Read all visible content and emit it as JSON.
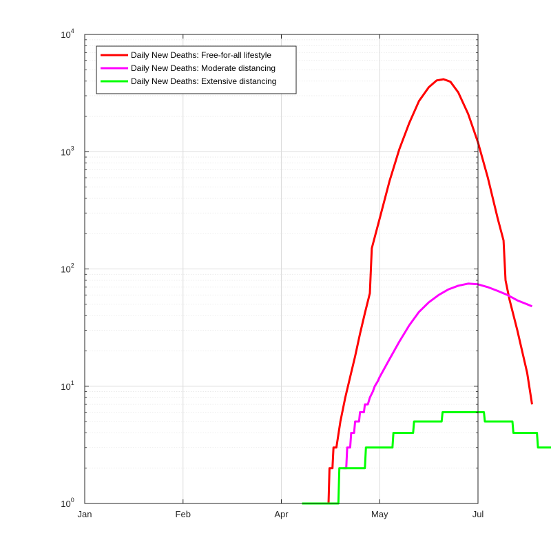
{
  "chart_data": {
    "type": "line",
    "yscale": "log",
    "ylim": [
      1,
      10000
    ],
    "grid": true,
    "minor_grid": true,
    "legend_placement": "top-left",
    "x_ticks": [
      "Jan",
      "Feb",
      "Apr",
      "May",
      "Jul"
    ],
    "y_ticks": [
      {
        "value": 1,
        "base": "10",
        "exp": "0"
      },
      {
        "value": 10,
        "base": "10",
        "exp": "1"
      },
      {
        "value": 100,
        "base": "10",
        "exp": "2"
      },
      {
        "value": 1000,
        "base": "10",
        "exp": "3"
      },
      {
        "value": 10000,
        "base": "10",
        "exp": "4"
      }
    ],
    "series": [
      {
        "name": "Daily New Deaths: Free-for-all lifestyle",
        "color": "#ff0000",
        "points": [
          [
            2.3,
            1
          ],
          [
            2.4,
            1
          ],
          [
            2.48,
            1
          ],
          [
            2.49,
            2
          ],
          [
            2.52,
            2
          ],
          [
            2.53,
            3
          ],
          [
            2.56,
            3
          ],
          [
            2.6,
            5
          ],
          [
            2.65,
            8
          ],
          [
            2.7,
            12
          ],
          [
            2.75,
            18
          ],
          [
            2.8,
            28
          ],
          [
            2.85,
            42
          ],
          [
            2.9,
            62
          ],
          [
            2.92,
            150
          ],
          [
            3.0,
            270
          ],
          [
            3.1,
            560
          ],
          [
            3.2,
            1050
          ],
          [
            3.3,
            1750
          ],
          [
            3.4,
            2700
          ],
          [
            3.5,
            3550
          ],
          [
            3.58,
            4050
          ],
          [
            3.65,
            4150
          ],
          [
            3.72,
            3950
          ],
          [
            3.8,
            3200
          ],
          [
            3.9,
            2100
          ],
          [
            4.0,
            1200
          ],
          [
            4.1,
            600
          ],
          [
            4.2,
            270
          ],
          [
            4.26,
            175
          ],
          [
            4.28,
            80
          ],
          [
            4.32,
            55
          ],
          [
            4.4,
            30
          ],
          [
            4.5,
            13
          ],
          [
            4.55,
            7
          ]
        ]
      },
      {
        "name": "Daily New Deaths: Moderate distancing",
        "color": "#ff00ff",
        "points": [
          [
            2.63,
            2
          ],
          [
            2.66,
            2
          ],
          [
            2.67,
            3
          ],
          [
            2.7,
            3
          ],
          [
            2.71,
            4
          ],
          [
            2.74,
            4
          ],
          [
            2.75,
            5
          ],
          [
            2.79,
            5
          ],
          [
            2.8,
            6
          ],
          [
            2.84,
            6
          ],
          [
            2.85,
            7
          ],
          [
            2.88,
            7
          ],
          [
            2.9,
            8
          ],
          [
            2.93,
            9
          ],
          [
            2.95,
            10
          ],
          [
            2.98,
            11
          ],
          [
            3.0,
            12
          ],
          [
            3.1,
            17
          ],
          [
            3.2,
            24
          ],
          [
            3.3,
            33
          ],
          [
            3.4,
            43
          ],
          [
            3.5,
            52
          ],
          [
            3.6,
            60
          ],
          [
            3.7,
            67
          ],
          [
            3.8,
            72
          ],
          [
            3.9,
            75
          ],
          [
            4.0,
            74
          ],
          [
            4.1,
            70
          ],
          [
            4.2,
            65
          ],
          [
            4.3,
            60
          ],
          [
            4.4,
            54
          ],
          [
            4.5,
            50
          ],
          [
            4.55,
            48
          ]
        ]
      },
      {
        "name": "Daily New Deaths: Extensive distancing",
        "color": "#00ff00",
        "points": [
          [
            2.21,
            1
          ],
          [
            2.26,
            1
          ],
          [
            2.33,
            1
          ],
          [
            2.35,
            1
          ],
          [
            2.36,
            1
          ],
          [
            2.43,
            1
          ],
          [
            2.58,
            1
          ],
          [
            2.59,
            2
          ],
          [
            2.85,
            2
          ],
          [
            2.86,
            3
          ],
          [
            3.13,
            3
          ],
          [
            3.14,
            4
          ],
          [
            3.34,
            4
          ],
          [
            3.35,
            5
          ],
          [
            3.63,
            5
          ],
          [
            3.64,
            6
          ],
          [
            4.06,
            6
          ],
          [
            4.07,
            5
          ],
          [
            4.35,
            5
          ],
          [
            4.36,
            4
          ],
          [
            4.6,
            4
          ],
          [
            4.61,
            3
          ],
          [
            4.76,
            3
          ]
        ]
      }
    ]
  }
}
